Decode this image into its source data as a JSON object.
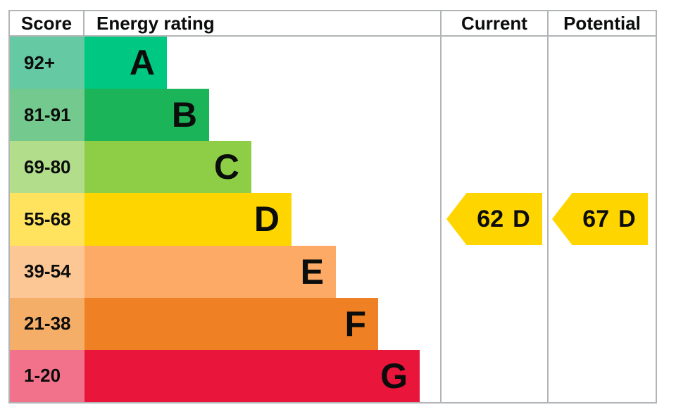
{
  "chart_data": {
    "type": "bar",
    "subtype": "epc-energy-rating",
    "columns": [
      "Score",
      "Energy rating",
      "Current",
      "Potential"
    ],
    "bands": [
      {
        "score_range": "92+",
        "letter": "A",
        "band_color": "#00c781",
        "score_cell_color": "#65c9a3"
      },
      {
        "score_range": "81-91",
        "letter": "B",
        "band_color": "#1cb459",
        "score_cell_color": "#74ca8e"
      },
      {
        "score_range": "69-80",
        "letter": "C",
        "band_color": "#8dce46",
        "score_cell_color": "#b2dd8b"
      },
      {
        "score_range": "55-68",
        "letter": "D",
        "band_color": "#ffd500",
        "score_cell_color": "#ffe25e"
      },
      {
        "score_range": "39-54",
        "letter": "E",
        "band_color": "#fcaa65",
        "score_cell_color": "#fdc795"
      },
      {
        "score_range": "21-38",
        "letter": "F",
        "band_color": "#ef8023",
        "score_cell_color": "#f4ae68"
      },
      {
        "score_range": "1-20",
        "letter": "G",
        "band_color": "#e9153b",
        "score_cell_color": "#f1728a"
      }
    ],
    "current": {
      "value": "62",
      "letter": "D",
      "arrow_color": "#ffd500"
    },
    "potential": {
      "value": "67",
      "letter": "D",
      "arrow_color": "#ffd500"
    },
    "border_color": "#b1b4b6",
    "text_color": "#0b0c0c"
  }
}
